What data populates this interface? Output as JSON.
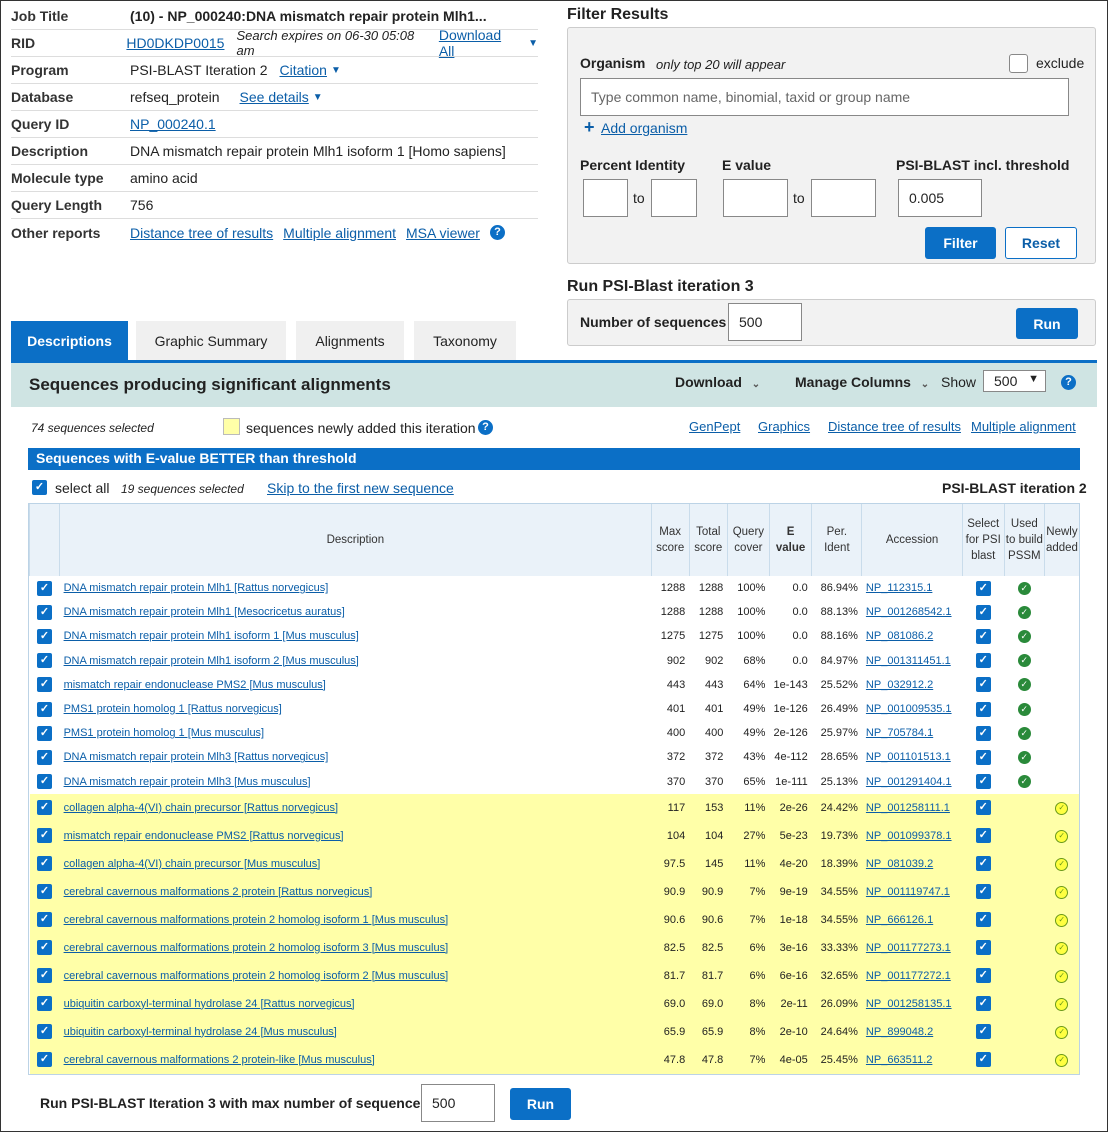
{
  "info": {
    "job_title_label": "Job Title",
    "job_title": "(10) - NP_000240:DNA mismatch repair protein Mlh1...",
    "rid_label": "RID",
    "rid": "HD0DKDP0015",
    "search_expires": "Search expires on 06-30 05:08 am",
    "download_all": "Download All",
    "program_label": "Program",
    "program": "PSI-BLAST Iteration 2",
    "citation": "Citation",
    "database_label": "Database",
    "database": "refseq_protein",
    "see_details": "See details",
    "query_id_label": "Query ID",
    "query_id": "NP_000240.1",
    "description_label": "Description",
    "description": "DNA mismatch repair protein Mlh1 isoform 1 [Homo sapiens]",
    "molecule_label": "Molecule type",
    "molecule": "amino acid",
    "length_label": "Query Length",
    "length": "756",
    "other_label": "Other reports",
    "other_links": [
      "Distance tree of results",
      "Multiple alignment",
      "MSA viewer"
    ]
  },
  "filter": {
    "title": "Filter Results",
    "organism_label": "Organism",
    "organism_note": "only top 20 will appear",
    "exclude": "exclude",
    "organism_placeholder": "Type common  name, binomial, taxid or group  name",
    "add_organism": "Add organism",
    "percent_identity": "Percent Identity",
    "evalue": "E value",
    "to": "to",
    "threshold_label": "PSI-BLAST incl. threshold",
    "threshold": "0.005",
    "filter_btn": "Filter",
    "reset_btn": "Reset"
  },
  "run": {
    "title": "Run PSI-Blast iteration 3",
    "num_label": "Number of sequences",
    "num": "500",
    "run_btn": "Run"
  },
  "tabs": [
    "Descriptions",
    "Graphic Summary",
    "Alignments",
    "Taxonomy"
  ],
  "results": {
    "title": "Sequences producing significant alignments",
    "download": "Download",
    "manage": "Manage Columns",
    "show": "Show",
    "show_value": "500",
    "selected": "74 sequences selected",
    "new_legend": "sequences newly added this iteration",
    "links": [
      "GenPept",
      "Graphics",
      "Distance tree of results",
      "Multiple alignment"
    ],
    "better_bar": "Sequences with E-value BETTER than threshold",
    "select_all": "select all",
    "sub_selected": "19 sequences selected",
    "skip": "Skip to the first new sequence",
    "iteration": "PSI-BLAST iteration 2",
    "headers": [
      "Description",
      "Max score",
      "Total score",
      "Query cover",
      "E value",
      "Per. Ident",
      "Accession",
      "Select for PSI blast",
      "Used to build PSSM",
      "Newly added"
    ],
    "rows": [
      [
        "DNA mismatch repair protein Mlh1 [Rattus norvegicus]",
        "1288",
        "1288",
        "100%",
        "0.0",
        "86.94%",
        "NP_112315.1",
        "used"
      ],
      [
        "DNA mismatch repair protein Mlh1 [Mesocricetus auratus]",
        "1288",
        "1288",
        "100%",
        "0.0",
        "88.13%",
        "NP_001268542.1",
        "used"
      ],
      [
        "DNA mismatch repair protein Mlh1 isoform 1 [Mus musculus]",
        "1275",
        "1275",
        "100%",
        "0.0",
        "88.16%",
        "NP_081086.2",
        "used"
      ],
      [
        "DNA mismatch repair protein Mlh1 isoform 2 [Mus musculus]",
        "902",
        "902",
        "68%",
        "0.0",
        "84.97%",
        "NP_001311451.1",
        "used"
      ],
      [
        "mismatch repair endonuclease PMS2 [Mus musculus]",
        "443",
        "443",
        "64%",
        "1e-143",
        "25.52%",
        "NP_032912.2",
        "used"
      ],
      [
        "PMS1 protein homolog 1 [Rattus norvegicus]",
        "401",
        "401",
        "49%",
        "1e-126",
        "26.49%",
        "NP_001009535.1",
        "used"
      ],
      [
        "PMS1 protein homolog 1 [Mus musculus]",
        "400",
        "400",
        "49%",
        "2e-126",
        "25.97%",
        "NP_705784.1",
        "used"
      ],
      [
        "DNA mismatch repair protein Mlh3 [Rattus norvegicus]",
        "372",
        "372",
        "43%",
        "4e-112",
        "28.65%",
        "NP_001101513.1",
        "used"
      ],
      [
        "DNA mismatch repair protein Mlh3 [Mus musculus]",
        "370",
        "370",
        "65%",
        "1e-111",
        "25.13%",
        "NP_001291404.1",
        "used"
      ],
      [
        "collagen alpha-4(VI) chain precursor [Rattus norvegicus]",
        "117",
        "153",
        "11%",
        "2e-26",
        "24.42%",
        "NP_001258111.1",
        "new"
      ],
      [
        "mismatch repair endonuclease PMS2 [Rattus norvegicus]",
        "104",
        "104",
        "27%",
        "5e-23",
        "19.73%",
        "NP_001099378.1",
        "new"
      ],
      [
        "collagen alpha-4(VI) chain precursor [Mus musculus]",
        "97.5",
        "145",
        "11%",
        "4e-20",
        "18.39%",
        "NP_081039.2",
        "new"
      ],
      [
        "cerebral cavernous malformations 2 protein [Rattus norvegicus]",
        "90.9",
        "90.9",
        "7%",
        "9e-19",
        "34.55%",
        "NP_001119747.1",
        "new"
      ],
      [
        "cerebral cavernous malformations protein 2 homolog isoform 1 [Mus musculus]",
        "90.6",
        "90.6",
        "7%",
        "1e-18",
        "34.55%",
        "NP_666126.1",
        "new"
      ],
      [
        "cerebral cavernous malformations protein 2 homolog isoform 3 [Mus musculus]",
        "82.5",
        "82.5",
        "6%",
        "3e-16",
        "33.33%",
        "NP_001177273.1",
        "new"
      ],
      [
        "cerebral cavernous malformations protein 2 homolog isoform 2 [Mus musculus]",
        "81.7",
        "81.7",
        "6%",
        "6e-16",
        "32.65%",
        "NP_001177272.1",
        "new"
      ],
      [
        "ubiquitin carboxyl-terminal hydrolase 24 [Rattus norvegicus]",
        "69.0",
        "69.0",
        "8%",
        "2e-11",
        "26.09%",
        "NP_001258135.1",
        "new"
      ],
      [
        "ubiquitin carboxyl-terminal hydrolase 24 [Mus musculus]",
        "65.9",
        "65.9",
        "8%",
        "2e-10",
        "24.64%",
        "NP_899048.2",
        "new"
      ],
      [
        "cerebral cavernous malformations 2 protein-like [Mus musculus]",
        "47.8",
        "47.8",
        "7%",
        "4e-05",
        "25.45%",
        "NP_663511.2",
        "new"
      ]
    ]
  },
  "bottom": {
    "label": "Run PSI-BLAST Iteration 3 with max number of sequences",
    "value": "500",
    "run_btn": "Run"
  },
  "colors": {
    "accent": "#0b6fc6",
    "header_band": "#cfe4e3",
    "new_row": "#ffffa8",
    "used_check": "#2a8a3a"
  }
}
